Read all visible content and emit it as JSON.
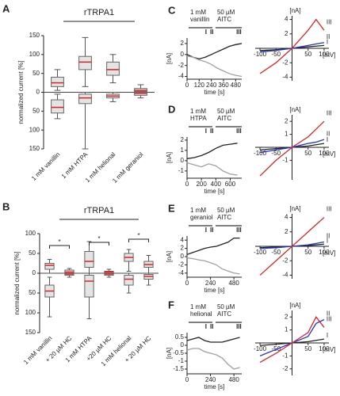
{
  "chart_data": [
    {
      "type": "box",
      "panel": "A",
      "title": "rTRPA1",
      "ylabel": "normalized current [%]",
      "categories": [
        "1 mM vanillin",
        "1 mM HTPA",
        "1 mM helional",
        "1 mM geraniol"
      ],
      "ylim": [
        -150,
        150
      ],
      "yticks": [
        {
          "value": -150,
          "label": "150"
        },
        {
          "value": -100,
          "label": "100"
        },
        {
          "value": -50,
          "label": "50"
        },
        0,
        50,
        100,
        150
      ],
      "box_color": "#e4e4e4",
      "median_color": "#e02020",
      "series": [
        {
          "boxes": [
            [
              5,
              15,
              25,
              40,
              60
            ],
            [
              15,
              60,
              80,
              95,
              145
            ],
            [
              25,
              45,
              60,
              80,
              100
            ],
            [
              0,
              2,
              5,
              10,
              20
            ]
          ]
        },
        {
          "boxes": [
            [
              -70,
              -55,
              -40,
              -20,
              -5
            ],
            [
              -150,
              -30,
              -15,
              -5,
              0
            ],
            [
              -25,
              -15,
              -10,
              -5,
              0
            ],
            [
              -15,
              -8,
              -3,
              0,
              0
            ]
          ]
        }
      ]
    },
    {
      "type": "box",
      "panel": "B",
      "title": "rTRPA1",
      "ylabel": "normalized current [%]",
      "categories": [
        "1 mM vanillin",
        "+ 20 µM HC",
        "1 mM HTPA",
        "+20 µM HC",
        "1 mM helional",
        "+ 20 µM HC"
      ],
      "ylim": [
        -150,
        100
      ],
      "yticks": [
        100,
        50,
        0,
        {
          "value": -50,
          "label": "50"
        },
        {
          "value": -100,
          "label": "100"
        },
        {
          "value": -150,
          "label": "150"
        }
      ],
      "box_color": "#e4e4e4",
      "median_color": "#e02020",
      "annotations": [
        "*",
        "*",
        "*"
      ],
      "series": [
        {
          "boxes": [
            [
              0,
              10,
              20,
              25,
              35
            ],
            [
              0,
              0,
              3,
              8,
              12
            ],
            [
              0,
              15,
              30,
              55,
              80
            ],
            [
              0,
              0,
              3,
              5,
              10
            ],
            [
              5,
              30,
              40,
              50,
              60
            ],
            [
              0,
              15,
              22,
              30,
              45
            ]
          ]
        },
        {
          "boxes": [
            [
              -110,
              -60,
              -45,
              -30,
              -10
            ],
            [
              -10,
              -5,
              -2,
              0,
              0
            ],
            [
              -115,
              -60,
              -20,
              -5,
              0
            ],
            [
              -10,
              -5,
              -2,
              0,
              0
            ],
            [
              -50,
              -30,
              -15,
              -5,
              0
            ],
            [
              -30,
              -15,
              -8,
              -3,
              0
            ]
          ]
        }
      ]
    },
    {
      "type": "trace",
      "panel": "C",
      "ylabel": "[nA]",
      "xlabel": "time [s]",
      "stimuli": [
        [
          "1 mM",
          "vanillin"
        ],
        [
          "50 µM",
          "AITC"
        ]
      ],
      "marks": [
        "I",
        "II",
        "III"
      ],
      "x": [
        0,
        60,
        120,
        180,
        240,
        300,
        360,
        420,
        480,
        540
      ],
      "series": [
        {
          "color": "#222222",
          "values": [
            0,
            -0.5,
            -0.8,
            -0.5,
            0,
            0.5,
            1,
            1.5,
            1.8,
            2
          ]
        },
        {
          "color": "#a0a0a0",
          "values": [
            -0.3,
            -0.5,
            -1,
            -1.3,
            -1.8,
            -2.5,
            -3,
            -3.5,
            -3.8,
            -4
          ]
        }
      ],
      "xlim": [
        0,
        540
      ],
      "ylim": [
        -4.5,
        3
      ],
      "xticks": [
        0,
        120,
        240,
        360,
        480
      ],
      "yticks": [
        -4,
        -2,
        0,
        2
      ]
    },
    {
      "type": "iv",
      "ylabel": "[nA]",
      "xlabel": "[mV]",
      "x": [
        -100,
        -50,
        0,
        50,
        75,
        100
      ],
      "series": [
        {
          "name": "I",
          "color": "#222222",
          "values": [
            -0.3,
            -0.2,
            0,
            0.2,
            0.3,
            0.4
          ]
        },
        {
          "name": "II",
          "color": "#2233cc",
          "values": [
            -0.5,
            -0.3,
            0,
            0.4,
            0.6,
            0.8
          ]
        },
        {
          "name": "III",
          "color": "#dd2222",
          "values": [
            -3.5,
            -2,
            0,
            2.5,
            4,
            2.5
          ]
        }
      ],
      "xlim": [
        -115,
        115
      ],
      "ylim": [
        -4.5,
        4.5
      ],
      "xticks": [
        -100,
        -50,
        50,
        100
      ],
      "yticks": [
        -4,
        -2,
        2,
        4
      ]
    },
    {
      "type": "trace",
      "panel": "D",
      "ylabel": "[nA]",
      "xlabel": "time [s]",
      "stimuli": [
        [
          "1 mM",
          "HTPA"
        ],
        [
          "50 µM",
          "AITC"
        ]
      ],
      "marks": [
        "I",
        "II",
        "III"
      ],
      "x": [
        0,
        100,
        200,
        300,
        400,
        500,
        600,
        700
      ],
      "series": [
        {
          "color": "#222222",
          "values": [
            0.2,
            0.3,
            0.5,
            0.8,
            1.2,
            1.5,
            1.6,
            1.7
          ]
        },
        {
          "color": "#a0a0a0",
          "values": [
            -0.2,
            -0.4,
            -0.6,
            -0.3,
            -0.5,
            -1,
            -1.3,
            -1.4
          ]
        }
      ],
      "xlim": [
        0,
        760
      ],
      "ylim": [
        -1.7,
        2.3
      ],
      "xticks": [
        0,
        200,
        400,
        600
      ],
      "yticks": [
        -1,
        0,
        1,
        2
      ]
    },
    {
      "type": "iv",
      "ylabel": "[nA]",
      "xlabel": "[mV]",
      "x": [
        -100,
        -50,
        0,
        50,
        75,
        100
      ],
      "series": [
        {
          "name": "I",
          "color": "#222222",
          "values": [
            -0.2,
            -0.1,
            0,
            0.1,
            0.2,
            0.3
          ]
        },
        {
          "name": "II",
          "color": "#2233cc",
          "values": [
            -0.4,
            -0.2,
            0,
            0.3,
            0.4,
            0.6
          ]
        },
        {
          "name": "III",
          "color": "#dd2222",
          "values": [
            -2.2,
            -1,
            0,
            0.8,
            1.4,
            2
          ]
        }
      ],
      "xlim": [
        -115,
        115
      ],
      "ylim": [
        -2.5,
        2.5
      ],
      "xticks": [
        -100,
        -50,
        50,
        100
      ],
      "yticks": [
        -1,
        1,
        2
      ]
    },
    {
      "type": "trace",
      "panel": "E",
      "ylabel": "[nA]",
      "xlabel": "time [s]",
      "stimuli": [
        [
          "1 mM",
          "geraniol"
        ],
        [
          "50 µM",
          "AITC"
        ]
      ],
      "marks": [
        "I",
        "II",
        "III"
      ],
      "x": [
        0,
        60,
        120,
        180,
        240,
        300,
        360,
        420,
        480,
        540
      ],
      "series": [
        {
          "color": "#222222",
          "values": [
            0.5,
            1,
            1.5,
            2,
            2.3,
            2.5,
            3,
            3.5,
            4.5,
            4.5
          ]
        },
        {
          "color": "#a0a0a0",
          "values": [
            -0.3,
            -0.5,
            -0.8,
            -1,
            -1.5,
            -2,
            -3,
            -3.5,
            -4,
            -4.2
          ]
        }
      ],
      "xlim": [
        0,
        560
      ],
      "ylim": [
        -5,
        5
      ],
      "xticks": [
        0,
        240,
        480
      ],
      "yticks": [
        -4,
        -2,
        0,
        2,
        4
      ]
    },
    {
      "type": "iv",
      "ylabel": "[nA]",
      "xlabel": "[mV]",
      "x": [
        -100,
        -50,
        0,
        50,
        75,
        100
      ],
      "series": [
        {
          "name": "I",
          "color": "#222222",
          "values": [
            -0.2,
            -0.1,
            0,
            0.1,
            0.2,
            0.3
          ]
        },
        {
          "name": "II",
          "color": "#2233cc",
          "values": [
            -0.3,
            -0.2,
            0,
            0.2,
            0.4,
            0.6
          ]
        },
        {
          "name": "III",
          "color": "#dd2222",
          "values": [
            -4,
            -2,
            0,
            2,
            3,
            4
          ]
        }
      ],
      "xlim": [
        -115,
        115
      ],
      "ylim": [
        -4.5,
        4.5
      ],
      "xticks": [
        -100,
        -50,
        50,
        100
      ],
      "yticks": [
        -4,
        -2,
        2,
        4
      ]
    },
    {
      "type": "trace",
      "panel": "F",
      "ylabel": "[nA]",
      "xlabel": "time [s]",
      "stimuli": [
        [
          "1 mM",
          "helional"
        ],
        [
          "50 µM",
          "AITC"
        ]
      ],
      "marks": [
        "I",
        "II",
        "III"
      ],
      "x": [
        0,
        60,
        120,
        180,
        240,
        300,
        360,
        420,
        480,
        540
      ],
      "series": [
        {
          "color": "#222222",
          "values": [
            0.3,
            0.4,
            0.5,
            0.3,
            0.2,
            0.2,
            0.2,
            0.3,
            0.4,
            0.5
          ]
        },
        {
          "color": "#a0a0a0",
          "values": [
            -0.3,
            -0.2,
            -0.2,
            -0.4,
            -0.5,
            -0.6,
            -0.8,
            -1.2,
            -1.5,
            -1.4
          ]
        }
      ],
      "xlim": [
        0,
        560
      ],
      "ylim": [
        -1.8,
        0.8
      ],
      "xticks": [
        0,
        240,
        480
      ],
      "yticks": [
        -1.5,
        -1,
        -0.5,
        0,
        0.5
      ]
    },
    {
      "type": "iv",
      "ylabel": "[nA]",
      "xlabel": "[mV]",
      "x": [
        -100,
        -50,
        0,
        50,
        75,
        100
      ],
      "series": [
        {
          "name": "I",
          "color": "#222222",
          "values": [
            -0.2,
            -0.1,
            0,
            0.1,
            0.2,
            0.3
          ]
        },
        {
          "name": "II",
          "color": "#2233cc",
          "values": [
            -1,
            -0.5,
            0,
            0.5,
            1.5,
            1.8
          ]
        },
        {
          "name": "III",
          "color": "#dd2222",
          "values": [
            -1.5,
            -0.8,
            0,
            0.8,
            2,
            1.2
          ]
        }
      ],
      "xlim": [
        -115,
        115
      ],
      "ylim": [
        -2.5,
        2.5
      ],
      "xticks": [
        -100,
        -50,
        50,
        100
      ],
      "yticks": [
        -2,
        -1,
        1,
        2
      ]
    }
  ]
}
